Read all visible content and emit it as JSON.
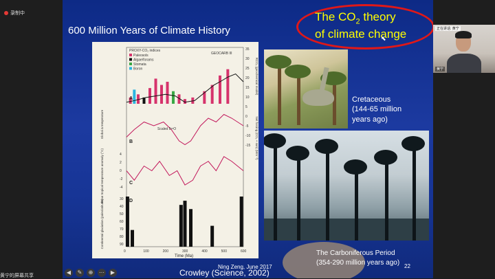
{
  "meeting": {
    "recording_label": "录制中",
    "sharing_label": "黄宁的屏幕共享"
  },
  "slide": {
    "title": "600 Million Years of Climate History",
    "theory_line1_pre": "The CO",
    "theory_sub": "2",
    "theory_line1_post": " theory",
    "theory_line2": "of climate change",
    "cretaceous_lines": [
      "Cretaceous",
      "(144-65 million",
      "years ago)"
    ],
    "carboniferous_lines": [
      "The Carboniferous Period",
      "(354-290 million years ago)"
    ],
    "author_date": "Ning Zeng, June 2017",
    "citation": "Crowley (Science, 2002)",
    "slide_number": "22"
  },
  "chart": {
    "legend_title": "PROXY-CO₂ indices",
    "legend_items": [
      {
        "label": "Paleosols",
        "color": "#d6336c"
      },
      {
        "label": "Algae/forams",
        "color": "#111111"
      },
      {
        "label": "Stomata",
        "color": "#3aa845"
      },
      {
        "label": "Boron",
        "color": "#2bb5e0"
      }
    ],
    "geocarb_label": "GEOCARB III",
    "scaled_label": "Scaled δ¹⁸O",
    "panel_letters": [
      "A",
      "B",
      "C",
      "D"
    ],
    "ylabels_left": [
      "Global Δ temperature",
      "Mean tropical temperature anomaly (°C)",
      "Continental glaciation (paleolatitude)"
    ],
    "ylabels_right": [
      "RCO₂ (geochemical model)",
      "Net forcing (CO₂ + sun) (Wm⁻²)"
    ],
    "right_ticks": [
      "35",
      "30",
      "25",
      "20",
      "15",
      "10",
      "5",
      "0",
      "-5",
      "-10",
      "-15"
    ],
    "left_ticks": [
      "4",
      "2",
      "0",
      "-2",
      "-4"
    ],
    "glac_ticks": [
      "30",
      "40",
      "50",
      "60",
      "70",
      "80",
      "90"
    ],
    "x_ticks": [
      "0",
      "100",
      "200",
      "300",
      "400",
      "500",
      "600"
    ],
    "x_title": "Time (Ma)"
  },
  "chart_data": {
    "type": "line",
    "title": "600 Million Years of Climate History",
    "xlabel": "Time (Ma)",
    "xlim": [
      0,
      600
    ],
    "series": [
      {
        "name": "GEOCARB III",
        "x": [
          0,
          40,
          100,
          150,
          200,
          250,
          300,
          350,
          400,
          450,
          480,
          520,
          560,
          600
        ],
        "y": [
          1,
          2,
          4,
          5,
          6,
          5,
          1,
          2,
          7,
          12,
          14,
          17,
          19,
          14
        ]
      },
      {
        "name": "Scaled δ¹⁸O",
        "x": [
          0,
          40,
          90,
          140,
          190,
          230,
          270,
          300,
          330,
          380,
          420,
          460,
          500,
          540,
          600
        ],
        "y": [
          -2,
          0,
          2,
          1,
          2,
          0,
          -3,
          -4,
          -3,
          1,
          3,
          2,
          4,
          3,
          1
        ]
      },
      {
        "name": "Mean tropical temperature anomaly",
        "x": [
          0,
          40,
          90,
          130,
          170,
          220,
          260,
          300,
          340,
          380,
          420,
          460,
          500,
          540,
          600
        ],
        "y": [
          0,
          -2,
          1,
          0,
          2,
          -1,
          0,
          -3,
          -2,
          1,
          2,
          0,
          3,
          2,
          0
        ]
      }
    ],
    "glaciation": [
      {
        "time": 5,
        "paleolatitude": 30
      },
      {
        "time": 30,
        "paleolatitude": 70
      },
      {
        "time": 280,
        "paleolatitude": 40
      },
      {
        "time": 300,
        "paleolatitude": 35
      },
      {
        "time": 330,
        "paleolatitude": 45
      },
      {
        "time": 440,
        "paleolatitude": 65
      },
      {
        "time": 590,
        "paleolatitude": 30
      }
    ],
    "proxy_co2_bars": [
      {
        "time": 20,
        "value": 4,
        "proxy": "Paleosols"
      },
      {
        "time": 40,
        "value": 9,
        "proxy": "Boron"
      },
      {
        "time": 60,
        "value": 6,
        "proxy": "Paleosols"
      },
      {
        "time": 90,
        "value": 4,
        "proxy": "Algae/forams"
      },
      {
        "time": 120,
        "value": 10,
        "proxy": "Paleosols"
      },
      {
        "time": 150,
        "value": 16,
        "proxy": "Paleosols"
      },
      {
        "time": 180,
        "value": 12,
        "proxy": "Paleosols"
      },
      {
        "time": 210,
        "value": 14,
        "proxy": "Paleosols"
      },
      {
        "time": 240,
        "value": 8,
        "proxy": "Stomata"
      },
      {
        "time": 270,
        "value": 6,
        "proxy": "Paleosols"
      },
      {
        "time": 300,
        "value": 3,
        "proxy": "Paleosols"
      },
      {
        "time": 340,
        "value": 4,
        "proxy": "Paleosols"
      },
      {
        "time": 400,
        "value": 8,
        "proxy": "Paleosols"
      },
      {
        "time": 440,
        "value": 12,
        "proxy": "Paleosols"
      },
      {
        "time": 480,
        "value": 18,
        "proxy": "Paleosols"
      },
      {
        "time": 520,
        "value": 22,
        "proxy": "Paleosols"
      }
    ]
  },
  "participant": {
    "tag": "正在讲话: 黄宁",
    "name": "黄宁"
  },
  "nav_icons": [
    "prev-arrow-icon",
    "pen-icon",
    "zoom-icon",
    "menu-icon",
    "next-arrow-icon"
  ]
}
